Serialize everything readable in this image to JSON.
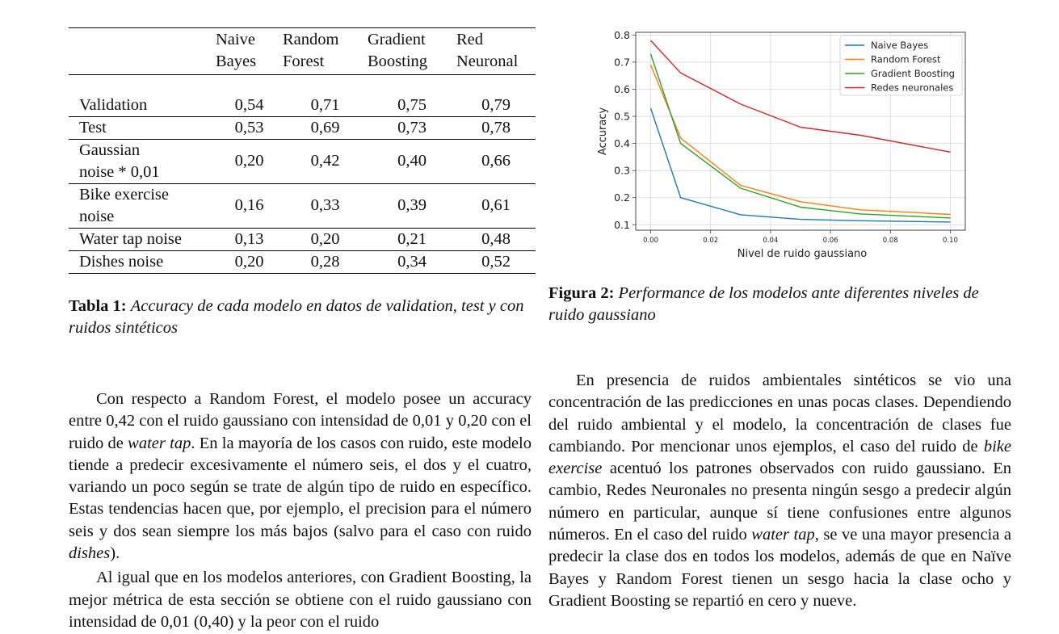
{
  "table": {
    "headers": [
      [
        "",
        ""
      ],
      [
        "Naive",
        "Bayes"
      ],
      [
        "Random",
        "Forest"
      ],
      [
        "Gradient",
        "Boosting"
      ],
      [
        "Red",
        "Neuronal"
      ]
    ],
    "rows": [
      {
        "label": [
          "Validation"
        ],
        "values": [
          "0,54",
          "0,71",
          "0,75",
          "0,79"
        ]
      },
      {
        "label": [
          "Test"
        ],
        "values": [
          "0,53",
          "0,69",
          "0,73",
          "0,78"
        ]
      },
      {
        "label": [
          "Gaussian",
          "noise * 0,01"
        ],
        "values": [
          "0,20",
          "0,42",
          "0,40",
          "0,66"
        ]
      },
      {
        "label": [
          "Bike exercise",
          "noise"
        ],
        "values": [
          "0,16",
          "0,33",
          "0,39",
          "0,61"
        ]
      },
      {
        "label": [
          "Water tap noise"
        ],
        "values": [
          "0,13",
          "0,20",
          "0,21",
          "0,48"
        ]
      },
      {
        "label": [
          "Dishes noise"
        ],
        "values": [
          "0,20",
          "0,28",
          "0,34",
          "0,52"
        ]
      }
    ],
    "caption_label": "Tabla 1:",
    "caption_text": "Accuracy de cada modelo en datos de validation, test y con ruidos sintéticos"
  },
  "figure": {
    "caption_label": "Figura 2:",
    "caption_text": "Performance de los modelos ante diferentes niveles de ruido gaussiano"
  },
  "chart_data": {
    "type": "line",
    "title": "",
    "xlabel": "Nivel de ruido gaussiano",
    "ylabel": "Accuracy",
    "x": [
      0.0,
      0.01,
      0.03,
      0.05,
      0.07,
      0.1
    ],
    "xticks": [
      "0.00",
      "0.02",
      "0.04",
      "0.06",
      "0.08",
      "0.10"
    ],
    "xtick_values": [
      0.0,
      0.02,
      0.04,
      0.06,
      0.08,
      0.1
    ],
    "yticks": [
      "0.1",
      "0.2",
      "0.3",
      "0.4",
      "0.5",
      "0.6",
      "0.7",
      "0.8"
    ],
    "ytick_values": [
      0.1,
      0.2,
      0.3,
      0.4,
      0.5,
      0.6,
      0.7,
      0.8
    ],
    "xlim": [
      -0.005,
      0.105
    ],
    "ylim": [
      0.08,
      0.81
    ],
    "grid": true,
    "legend_position": "top-right",
    "series": [
      {
        "name": "Naive Bayes",
        "color": "#1f77b4",
        "values": [
          0.53,
          0.2,
          0.137,
          0.12,
          0.115,
          0.11
        ]
      },
      {
        "name": "Random Forest",
        "color": "#ff7f0e",
        "values": [
          0.69,
          0.42,
          0.245,
          0.185,
          0.155,
          0.138
        ]
      },
      {
        "name": "Gradient Boosting",
        "color": "#2ca02c",
        "values": [
          0.73,
          0.4,
          0.235,
          0.165,
          0.14,
          0.125
        ]
      },
      {
        "name": "Redes neuronales",
        "color": "#d62728",
        "values": [
          0.78,
          0.66,
          0.545,
          0.46,
          0.43,
          0.368
        ]
      }
    ]
  },
  "left_text": {
    "p1": [
      {
        "t": "Con respecto a Random Forest, el modelo posee un accuracy entre 0,42 con el ruido gaussiano con intensidad de 0,01 y 0,20 con el ruido de "
      },
      {
        "t": "water tap",
        "i": true
      },
      {
        "t": ". En la mayoría de los casos con ruido, este modelo tiende a predecir excesivamente el número seis, el dos y el cuatro, variando un poco según se trate de algún tipo de ruido en específico. Estas tendencias hacen que, por ejemplo, el precision para el número seis y dos sean siempre los más bajos (salvo para el caso con ruido "
      },
      {
        "t": "dishes",
        "i": true
      },
      {
        "t": ")."
      }
    ],
    "p2": [
      {
        "t": "Al igual que en los modelos anteriores, con Gradient Boosting, la mejor métrica de esta sección se obtiene con el ruido gaussiano con intensidad de 0,01 (0,40) y la peor con el ruido"
      }
    ]
  },
  "right_text": {
    "p1": [
      {
        "t": "En presencia de ruidos ambientales sintéticos se vio una concentración de las predicciones en unas pocas clases. Dependiendo del ruido ambiental y el modelo, la concentración de clases fue cambiando. Por mencionar unos ejemplos, el caso del ruido de "
      },
      {
        "t": "bike exercise",
        "i": true
      },
      {
        "t": " acentuó los patrones observados con ruido gaussiano. En cambio, Redes Neuronales no presenta ningún sesgo a predecir algún número en particular, aunque sí tiene confusiones entre algunos números. En el caso del ruido "
      },
      {
        "t": "water tap",
        "i": true
      },
      {
        "t": ", se ve una mayor presencia a predecir la clase dos en todos los modelos, además de que en Naïve Bayes y Random Forest tienen un sesgo hacia la clase ocho y Gradient Boosting se repartió en cero y nueve."
      }
    ]
  }
}
